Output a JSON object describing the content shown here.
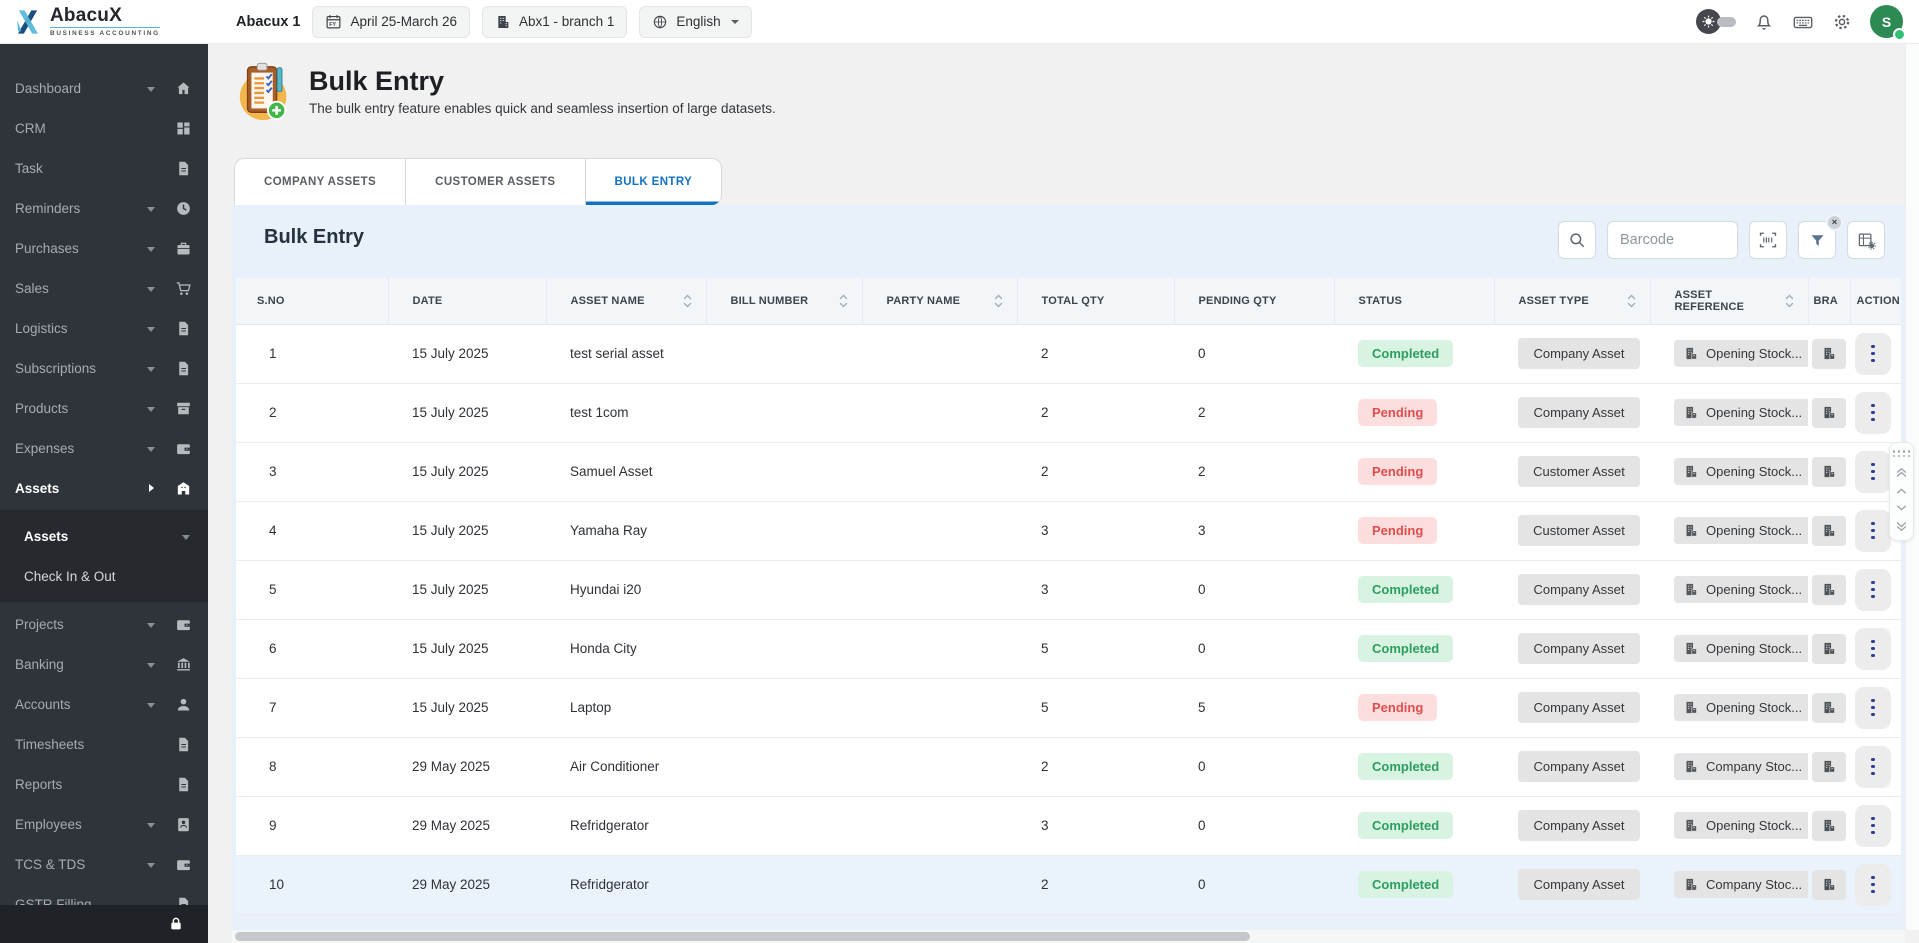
{
  "topbar": {
    "brand_name": "AbacuX",
    "brand_tagline": "BUSINESS ACCOUNTING",
    "company_label": "Abacux 1",
    "fiscal_year_label": "April 25-March 26",
    "branch_label": "Abx1 - branch 1",
    "language_label": "English",
    "avatar_initial": "S"
  },
  "sidebar": {
    "items_upper": [
      {
        "label": "Dashboard",
        "icon": "home",
        "caret": "down",
        "active": false
      },
      {
        "label": "CRM",
        "icon": "grid",
        "caret": "",
        "active": false
      },
      {
        "label": "Task",
        "icon": "file",
        "caret": "",
        "active": false
      },
      {
        "label": "Reminders",
        "icon": "clock",
        "caret": "down",
        "active": false
      },
      {
        "label": "Purchases",
        "icon": "briefcase",
        "caret": "down",
        "active": false
      },
      {
        "label": "Sales",
        "icon": "cart",
        "caret": "down",
        "active": false
      },
      {
        "label": "Logistics",
        "icon": "file",
        "caret": "down",
        "active": false
      },
      {
        "label": "Subscriptions",
        "icon": "file",
        "caret": "down",
        "active": false
      },
      {
        "label": "Products",
        "icon": "archive",
        "caret": "down",
        "active": false
      },
      {
        "label": "Expenses",
        "icon": "wallet",
        "caret": "down",
        "active": false
      },
      {
        "label": "Assets",
        "icon": "building",
        "caret": "right",
        "active": true
      }
    ],
    "submenu": [
      {
        "label": "Assets",
        "caret": "down",
        "active": true
      },
      {
        "label": "Check In & Out",
        "caret": "",
        "active": false
      }
    ],
    "items_lower": [
      {
        "label": "Projects",
        "icon": "wallet",
        "caret": "down",
        "active": false
      },
      {
        "label": "Banking",
        "icon": "bank",
        "caret": "down",
        "active": false
      },
      {
        "label": "Accounts",
        "icon": "person",
        "caret": "down",
        "active": false
      },
      {
        "label": "Timesheets",
        "icon": "file",
        "caret": "",
        "active": false
      },
      {
        "label": "Reports",
        "icon": "file",
        "caret": "",
        "active": false
      },
      {
        "label": "Employees",
        "icon": "badge",
        "caret": "down",
        "active": false
      },
      {
        "label": "TCS & TDS",
        "icon": "wallet",
        "caret": "down",
        "active": false
      },
      {
        "label": "GSTR Filling",
        "icon": "file",
        "caret": "",
        "active": false
      }
    ]
  },
  "page": {
    "title": "Bulk Entry",
    "subtitle": "The bulk entry feature enables quick and seamless insertion of large datasets."
  },
  "tabs": [
    {
      "label": "COMPANY ASSETS",
      "active": false
    },
    {
      "label": "CUSTOMER ASSETS",
      "active": false
    },
    {
      "label": "BULK ENTRY",
      "active": true
    }
  ],
  "panel": {
    "title": "Bulk Entry",
    "barcode_placeholder": "Barcode",
    "filter_badge": "×"
  },
  "table": {
    "columns": [
      {
        "label": "S.NO",
        "sortable": false
      },
      {
        "label": "DATE",
        "sortable": false
      },
      {
        "label": "ASSET NAME",
        "sortable": true
      },
      {
        "label": "BILL NUMBER",
        "sortable": true
      },
      {
        "label": "PARTY NAME",
        "sortable": true
      },
      {
        "label": "TOTAL QTY",
        "sortable": false
      },
      {
        "label": "PENDING QTY",
        "sortable": false
      },
      {
        "label": "STATUS",
        "sortable": false
      },
      {
        "label": "ASSET TYPE",
        "sortable": true
      },
      {
        "label": "ASSET REFERENCE",
        "sortable": true
      },
      {
        "label": "BRA",
        "sortable": false
      },
      {
        "label": "ACTION",
        "sortable": false
      }
    ],
    "rows": [
      {
        "sno": "1",
        "date": "15 July 2025",
        "asset_name": "test serial asset",
        "bill_number": "",
        "party_name": "",
        "total_qty": "2",
        "pending_qty": "0",
        "status": "Completed",
        "asset_type": "Company Asset",
        "asset_reference": "Opening Stock...",
        "highlighted": false
      },
      {
        "sno": "2",
        "date": "15 July 2025",
        "asset_name": "test 1com",
        "bill_number": "",
        "party_name": "",
        "total_qty": "2",
        "pending_qty": "2",
        "status": "Pending",
        "asset_type": "Company Asset",
        "asset_reference": "Opening Stock...",
        "highlighted": false
      },
      {
        "sno": "3",
        "date": "15 July 2025",
        "asset_name": "Samuel Asset",
        "bill_number": "",
        "party_name": "",
        "total_qty": "2",
        "pending_qty": "2",
        "status": "Pending",
        "asset_type": "Customer Asset",
        "asset_reference": "Opening Stock...",
        "highlighted": false
      },
      {
        "sno": "4",
        "date": "15 July 2025",
        "asset_name": "Yamaha Ray",
        "bill_number": "",
        "party_name": "",
        "total_qty": "3",
        "pending_qty": "3",
        "status": "Pending",
        "asset_type": "Customer Asset",
        "asset_reference": "Opening Stock...",
        "highlighted": false
      },
      {
        "sno": "5",
        "date": "15 July 2025",
        "asset_name": "Hyundai i20",
        "bill_number": "",
        "party_name": "",
        "total_qty": "3",
        "pending_qty": "0",
        "status": "Completed",
        "asset_type": "Company Asset",
        "asset_reference": "Opening Stock...",
        "highlighted": false
      },
      {
        "sno": "6",
        "date": "15 July 2025",
        "asset_name": "Honda City",
        "bill_number": "",
        "party_name": "",
        "total_qty": "5",
        "pending_qty": "0",
        "status": "Completed",
        "asset_type": "Company Asset",
        "asset_reference": "Opening Stock...",
        "highlighted": false
      },
      {
        "sno": "7",
        "date": "15 July 2025",
        "asset_name": "Laptop",
        "bill_number": "",
        "party_name": "",
        "total_qty": "5",
        "pending_qty": "5",
        "status": "Pending",
        "asset_type": "Company Asset",
        "asset_reference": "Opening Stock...",
        "highlighted": false
      },
      {
        "sno": "8",
        "date": "29 May 2025",
        "asset_name": "Air Conditioner",
        "bill_number": "",
        "party_name": "",
        "total_qty": "2",
        "pending_qty": "0",
        "status": "Completed",
        "asset_type": "Company Asset",
        "asset_reference": "Company Stoc...",
        "highlighted": false
      },
      {
        "sno": "9",
        "date": "29 May 2025",
        "asset_name": "Refridgerator",
        "bill_number": "",
        "party_name": "",
        "total_qty": "3",
        "pending_qty": "0",
        "status": "Completed",
        "asset_type": "Company Asset",
        "asset_reference": "Opening Stock...",
        "highlighted": false
      },
      {
        "sno": "10",
        "date": "29 May 2025",
        "asset_name": "Refridgerator",
        "bill_number": "",
        "party_name": "",
        "total_qty": "2",
        "pending_qty": "0",
        "status": "Completed",
        "asset_type": "Company Asset",
        "asset_reference": "Company Stoc...",
        "highlighted": true
      }
    ]
  },
  "colors": {
    "accent_blue": "#1371c3",
    "sidebar_bg": "#2f343a",
    "panel_bg": "#e8f1f9",
    "status_completed_text": "#2d9e5f",
    "status_completed_bg": "#d8f3e2",
    "status_pending_text": "#e14d4d",
    "status_pending_bg": "#fcdede",
    "avatar_green": "#2c8a52",
    "logo_light_blue": "#57b6d9",
    "logo_dark_blue": "#1c4f80"
  }
}
